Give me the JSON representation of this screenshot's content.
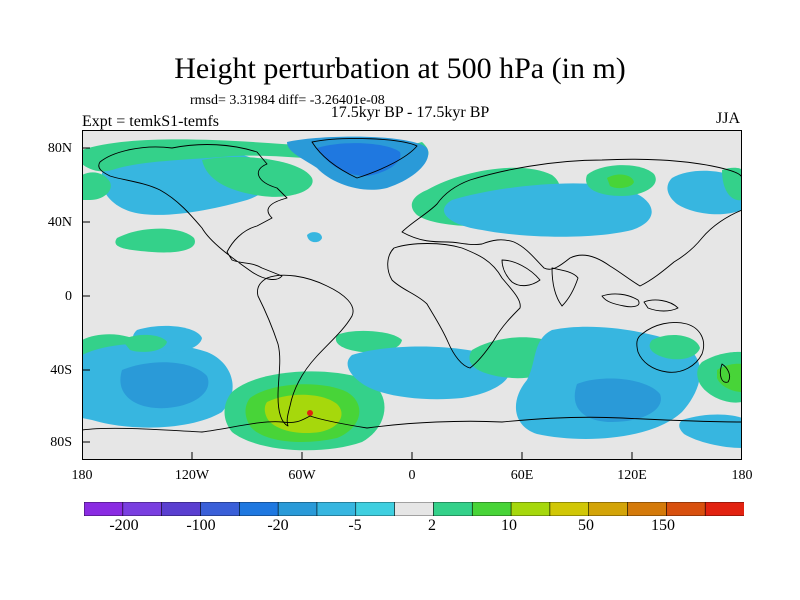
{
  "title": "Height perturbation at 500 hPa (in m)",
  "stats": "rmsd= 3.31984 diff= -3.26401e-08",
  "subtitle": "17.5kyr BP - 17.5kyr BP",
  "experiment": "Expt = temkS1-temfs",
  "season": "JJA",
  "y_axis": [
    "80N",
    "40N",
    "0",
    "40S",
    "80S"
  ],
  "x_axis": [
    "180",
    "120W",
    "60W",
    "0",
    "60E",
    "120E",
    "180"
  ],
  "colorbar": {
    "colors": [
      "#8a2be2",
      "#7a3fe0",
      "#5a3fd0",
      "#3a5fd8",
      "#1f78e0",
      "#2a9ad8",
      "#37b6e0",
      "#3fcfe0",
      "#e6e6e6",
      "#34d18a",
      "#48d438",
      "#a6d80c",
      "#d1c706",
      "#d3a408",
      "#d47a0a",
      "#d8500e",
      "#e22210"
    ],
    "labels": [
      "-200",
      "-100",
      "-20",
      "-5",
      "2",
      "10",
      "50",
      "150"
    ]
  },
  "colors": {
    "background": "#e6e6e6",
    "neg_light": "#37b6e0",
    "neg_mid": "#2a9ad8",
    "neg_dark": "#1f78e0",
    "pos_light": "#34d18a",
    "pos_mid": "#48d438",
    "pos_high": "#a6d80c",
    "pos_peak": "#e22210"
  }
}
